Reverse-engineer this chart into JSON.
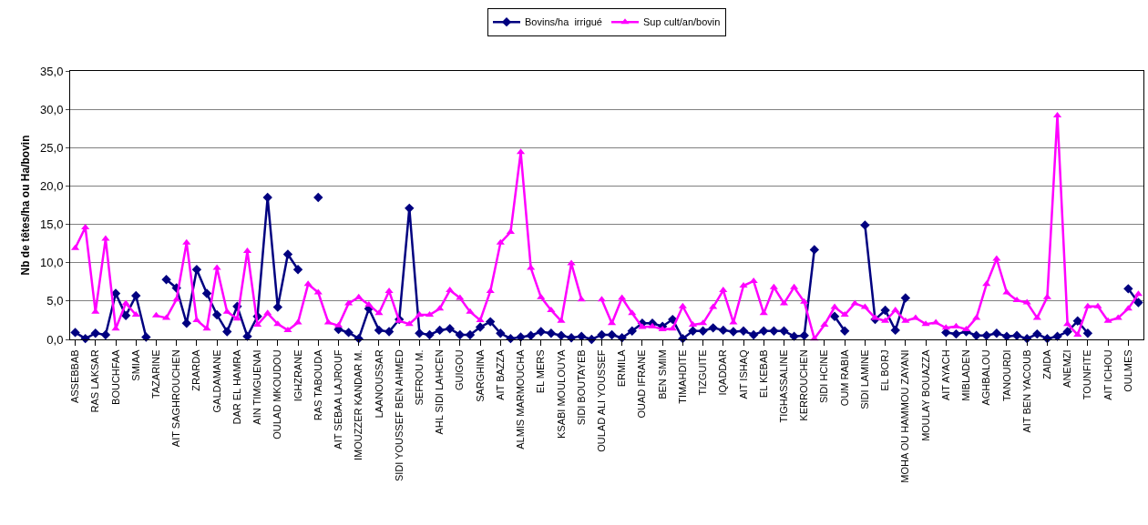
{
  "chart_data": {
    "type": "line",
    "ylabel": "Nb de têtes/ha ou Ha/bovin",
    "categories": [
      "ASSEBBAB",
      null,
      "RAS LAKSAR",
      null,
      "BOUCHFAA",
      null,
      "SMIAA",
      null,
      "TAZARINE",
      null,
      "AIT SAGHROUCHEN",
      null,
      "ZRARDA",
      null,
      "GALDAMANE",
      null,
      "DAR EL HAMRA",
      null,
      "AIN TIMGUENAI",
      null,
      "OULAD MKOUDOU",
      null,
      "IGHZRANE",
      null,
      "RAS TABOUDA",
      null,
      "AIT SEBAA LAJROUF",
      null,
      "IMOUZZER KANDAR M.",
      null,
      "LAANOUSSAR",
      null,
      "SIDI YOUSSEF BEN AHMED",
      null,
      "SEFROU M.",
      null,
      "AHL SIDI LAHCEN",
      null,
      "GUIGOU",
      null,
      "SARGHINA",
      null,
      "AIT BAZZA",
      null,
      "ALMIS MARMOUCHA",
      null,
      "EL MERS",
      null,
      "KSABI MOULOUYA",
      null,
      "SIDI BOUTAYEB",
      null,
      "OULAD ALI YOUSSEF",
      null,
      "ERMILA",
      null,
      "OUAD IFRANE",
      null,
      "BEN SMIM",
      null,
      "TIMAHDITE",
      null,
      "TIZGUITE",
      null,
      "IQADDAR",
      null,
      "AIT ISHAQ",
      null,
      "EL KEBAB",
      null,
      "TIGHASSALINE",
      null,
      "KERROUCHEN",
      null,
      "SIDI HCINE",
      null,
      "OUM RABIA",
      null,
      "SIDI LAMINE",
      null,
      "EL BORJ",
      null,
      "MOHA OU HAMMOU ZAYANI",
      null,
      "MOULAY BOUAZZA",
      null,
      "AIT AYACH",
      null,
      "MIBLADEN",
      null,
      "AGHBALOU",
      null,
      "TANOURDI",
      null,
      "AIT BEN YACOUB",
      null,
      "ZAIDA",
      null,
      "ANEMZI",
      null,
      "TOUNFITE",
      null,
      "AIT ICHOU",
      null,
      "OULMES",
      null
    ],
    "series": [
      {
        "name": "Bovins/ha  irrigué",
        "color": "#000080",
        "marker": "diamond",
        "values": [
          0.9,
          0.1,
          0.8,
          0.6,
          6.0,
          3.1,
          5.7,
          0.3,
          null,
          7.8,
          6.7,
          2.1,
          9.1,
          6.0,
          3.2,
          1.0,
          4.3,
          0.4,
          3.0,
          18.5,
          4.2,
          11.1,
          9.1,
          null,
          18.5,
          null,
          1.3,
          0.9,
          0.1,
          4.0,
          1.2,
          1.0,
          2.6,
          17.1,
          0.8,
          0.6,
          1.2,
          1.4,
          0.6,
          0.6,
          1.6,
          2.3,
          0.8,
          0.1,
          0.3,
          0.5,
          1.0,
          0.8,
          0.5,
          0.2,
          0.4,
          0.0,
          0.6,
          0.6,
          0.2,
          1.1,
          2.1,
          2.1,
          1.7,
          2.6,
          0.1,
          1.1,
          1.1,
          1.5,
          1.2,
          1.0,
          1.1,
          0.6,
          1.1,
          1.1,
          1.1,
          0.4,
          0.5,
          11.7,
          null,
          3.0,
          1.1,
          null,
          14.9,
          2.6,
          3.8,
          1.2,
          5.4,
          null,
          null,
          null,
          0.9,
          0.7,
          1.0,
          0.5,
          0.5,
          0.8,
          0.4,
          0.5,
          0.1,
          0.7,
          0.1,
          0.4,
          1.0,
          2.4,
          0.8,
          null,
          null,
          null,
          6.6,
          4.8
        ]
      },
      {
        "name": "Sup cult/an/bovin",
        "color": "#ff00ff",
        "marker": "triangle",
        "values": [
          11.9,
          14.6,
          3.6,
          13.1,
          1.4,
          4.7,
          3.2,
          null,
          3.1,
          2.8,
          5.2,
          12.6,
          2.5,
          1.4,
          9.3,
          3.6,
          2.7,
          11.5,
          1.9,
          3.4,
          2.0,
          1.2,
          2.2,
          7.2,
          6.1,
          2.2,
          1.8,
          4.7,
          5.5,
          4.5,
          3.4,
          6.3,
          2.4,
          2.0,
          3.2,
          3.2,
          4.0,
          6.4,
          5.4,
          3.6,
          2.5,
          6.3,
          12.6,
          14.0,
          24.4,
          9.3,
          5.5,
          3.8,
          2.4,
          9.9,
          5.2,
          null,
          5.2,
          2.1,
          5.4,
          3.4,
          1.6,
          1.7,
          1.3,
          1.4,
          4.3,
          1.9,
          2.1,
          4.2,
          6.4,
          2.2,
          7.0,
          7.6,
          3.4,
          6.8,
          4.7,
          6.8,
          4.9,
          0.1,
          1.9,
          4.2,
          3.2,
          4.7,
          4.2,
          2.8,
          2.4,
          3.8,
          2.4,
          2.8,
          2.0,
          2.2,
          1.5,
          1.7,
          1.3,
          2.8,
          7.2,
          10.5,
          6.1,
          5.1,
          4.8,
          2.8,
          5.5,
          29.2,
          2.0,
          0.6,
          4.3,
          4.3,
          2.4,
          2.8,
          4.0,
          5.9
        ]
      }
    ],
    "ylim": [
      0,
      35
    ],
    "yticks": [
      {
        "value": 0,
        "label": "0,0"
      },
      {
        "value": 5,
        "label": "5,0"
      },
      {
        "value": 10,
        "label": "10,0"
      },
      {
        "value": 15,
        "label": "15,0"
      },
      {
        "value": 20,
        "label": "20,0"
      },
      {
        "value": 25,
        "label": "25,0"
      },
      {
        "value": 30,
        "label": "30,0"
      },
      {
        "value": 35,
        "label": "35,0"
      }
    ],
    "grid": "y",
    "legend": "top",
    "line_style": "solid"
  }
}
